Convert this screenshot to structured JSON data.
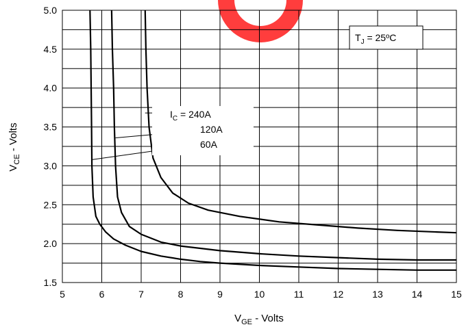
{
  "chart_data": {
    "type": "line",
    "xlabel": {
      "main": "V",
      "sub": "GE",
      "rest": " - Volts"
    },
    "ylabel": {
      "main": "V",
      "sub": "CE",
      "rest": " - Volts"
    },
    "xlim": [
      5,
      15
    ],
    "ylim": [
      1.5,
      5.0
    ],
    "x_ticks": [
      5,
      6,
      7,
      8,
      9,
      10,
      11,
      12,
      13,
      14,
      15
    ],
    "x_tick_labels": [
      "5",
      "6",
      "7",
      "8",
      "9",
      "10",
      "11",
      "12",
      "13",
      "14",
      "15"
    ],
    "y_ticks": [
      1.5,
      2.0,
      2.5,
      3.0,
      3.5,
      4.0,
      4.5,
      5.0
    ],
    "y_tick_labels": [
      "1.5",
      "2.0",
      "2.5",
      "3.0",
      "3.5",
      "4.0",
      "4.5",
      "5.0"
    ],
    "grid": {
      "major_x": true,
      "major_y": true,
      "minor_y_step": 0.25
    },
    "legend_box": {
      "prefix": "T",
      "sub": "J",
      "rest": " = 25ºC",
      "placement": "top-right"
    },
    "series": [
      {
        "label_prefix": "I",
        "label_sub": "C",
        "label_rest": " = 240A",
        "points": [
          [
            7.1,
            5.0
          ],
          [
            7.12,
            4.5
          ],
          [
            7.15,
            4.0
          ],
          [
            7.2,
            3.5
          ],
          [
            7.3,
            3.1
          ],
          [
            7.5,
            2.85
          ],
          [
            7.8,
            2.65
          ],
          [
            8.2,
            2.52
          ],
          [
            8.7,
            2.43
          ],
          [
            9.5,
            2.35
          ],
          [
            10.5,
            2.28
          ],
          [
            11.5,
            2.24
          ],
          [
            12.5,
            2.2
          ],
          [
            13.5,
            2.17
          ],
          [
            14.5,
            2.15
          ],
          [
            15.0,
            2.14
          ]
        ]
      },
      {
        "label": "120A",
        "points": [
          [
            6.25,
            5.0
          ],
          [
            6.27,
            4.5
          ],
          [
            6.3,
            4.0
          ],
          [
            6.32,
            3.5
          ],
          [
            6.35,
            3.0
          ],
          [
            6.4,
            2.6
          ],
          [
            6.5,
            2.4
          ],
          [
            6.7,
            2.22
          ],
          [
            7.0,
            2.12
          ],
          [
            7.5,
            2.02
          ],
          [
            8.0,
            1.97
          ],
          [
            8.5,
            1.94
          ],
          [
            9.0,
            1.91
          ],
          [
            10.0,
            1.87
          ],
          [
            11.0,
            1.84
          ],
          [
            12.0,
            1.82
          ],
          [
            13.0,
            1.8
          ],
          [
            14.0,
            1.79
          ],
          [
            15.0,
            1.79
          ]
        ]
      },
      {
        "label": "60A",
        "points": [
          [
            5.7,
            5.0
          ],
          [
            5.72,
            4.5
          ],
          [
            5.73,
            4.0
          ],
          [
            5.74,
            3.5
          ],
          [
            5.75,
            3.0
          ],
          [
            5.78,
            2.6
          ],
          [
            5.85,
            2.35
          ],
          [
            5.95,
            2.25
          ],
          [
            6.1,
            2.15
          ],
          [
            6.3,
            2.06
          ],
          [
            6.6,
            1.98
          ],
          [
            7.0,
            1.9
          ],
          [
            7.5,
            1.84
          ],
          [
            8.0,
            1.8
          ],
          [
            8.5,
            1.77
          ],
          [
            9.0,
            1.75
          ],
          [
            10.0,
            1.72
          ],
          [
            11.0,
            1.7
          ],
          [
            12.0,
            1.68
          ],
          [
            13.0,
            1.67
          ],
          [
            14.0,
            1.66
          ],
          [
            15.0,
            1.66
          ]
        ]
      }
    ],
    "leaders": [
      {
        "from": [
          7.1,
          3.68
        ],
        "to": [
          7.65,
          3.68
        ]
      },
      {
        "from": [
          6.35,
          3.36
        ],
        "to": [
          8.8,
          3.47
        ]
      },
      {
        "from": [
          5.75,
          3.08
        ],
        "to": [
          8.0,
          3.24
        ]
      }
    ],
    "colors": {
      "line": "#000000",
      "grid": "#000000",
      "watermark": "#ff3333"
    }
  }
}
